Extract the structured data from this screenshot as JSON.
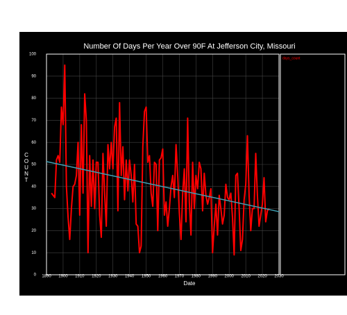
{
  "chart_data": {
    "type": "line",
    "title": "Number Of Days Per Year Over 90F At Jefferson City, Missouri",
    "xlabel": "Date",
    "ylabel": "COUNT",
    "xlim": [
      1890,
      2030
    ],
    "xticks": [
      1890,
      1900,
      1910,
      1920,
      1930,
      1940,
      1950,
      1960,
      1970,
      1980,
      1990,
      2000,
      2010,
      2020,
      2030
    ],
    "ylim": [
      0,
      100
    ],
    "yticks": [
      0,
      10,
      20,
      30,
      40,
      50,
      60,
      70,
      80,
      90,
      100
    ],
    "grid": true,
    "legend": "right",
    "series": [
      {
        "name": "days_count",
        "color": "#ff0000",
        "x": [
          1893,
          1894,
          1895,
          1896,
          1897,
          1898,
          1899,
          1900,
          1901,
          1902,
          1903,
          1904,
          1905,
          1906,
          1907,
          1908,
          1909,
          1910,
          1911,
          1912,
          1913,
          1914,
          1915,
          1916,
          1917,
          1918,
          1919,
          1920,
          1921,
          1922,
          1923,
          1924,
          1925,
          1926,
          1927,
          1928,
          1929,
          1930,
          1931,
          1932,
          1933,
          1934,
          1935,
          1936,
          1937,
          1938,
          1939,
          1940,
          1941,
          1942,
          1943,
          1944,
          1945,
          1946,
          1947,
          1948,
          1949,
          1950,
          1951,
          1952,
          1953,
          1954,
          1955,
          1956,
          1957,
          1958,
          1959,
          1960,
          1961,
          1962,
          1963,
          1964,
          1965,
          1966,
          1967,
          1968,
          1969,
          1970,
          1971,
          1972,
          1973,
          1974,
          1975,
          1976,
          1977,
          1978,
          1979,
          1980,
          1981,
          1982,
          1983,
          1984,
          1985,
          1986,
          1987,
          1988,
          1989,
          1990,
          1991,
          1992,
          1993,
          1994,
          1995,
          1996,
          1997,
          1998,
          1999,
          2000,
          2001,
          2002,
          2003,
          2004,
          2005,
          2006,
          2007,
          2008,
          2009,
          2010,
          2011,
          2012,
          2013,
          2014,
          2015,
          2016,
          2017,
          2018,
          2019,
          2020,
          2021,
          2022,
          2023,
          2024
        ],
        "values": [
          37,
          36,
          35,
          52,
          54,
          51,
          76,
          68,
          95,
          40,
          26,
          16,
          30,
          40,
          41,
          45,
          60,
          27,
          68,
          37,
          82,
          70,
          10,
          54,
          31,
          52,
          30,
          51,
          51,
          27,
          17,
          55,
          37,
          22,
          59,
          48,
          60,
          48,
          67,
          71,
          29,
          78,
          45,
          58,
          34,
          52,
          38,
          52,
          45,
          33,
          50,
          23,
          22,
          10,
          13,
          58,
          74,
          76,
          51,
          54,
          37,
          31,
          51,
          50,
          20,
          52,
          53,
          57,
          27,
          33,
          22,
          30,
          40,
          45,
          35,
          59,
          45,
          28,
          16,
          37,
          48,
          24,
          71,
          33,
          18,
          51,
          30,
          45,
          39,
          51,
          48,
          29,
          46,
          36,
          32,
          35,
          39,
          10,
          22,
          32,
          18,
          36,
          30,
          23,
          27,
          41,
          35,
          34,
          37,
          26,
          9,
          45,
          46,
          30,
          11,
          16,
          34,
          41,
          63,
          36,
          20,
          30,
          30,
          55,
          36,
          22,
          27,
          32,
          44,
          24,
          29,
          30
        ]
      }
    ],
    "trend": {
      "color": "#3fa0b4",
      "x": [
        1890,
        2030
      ],
      "values": [
        51.3,
        28.6
      ]
    }
  }
}
